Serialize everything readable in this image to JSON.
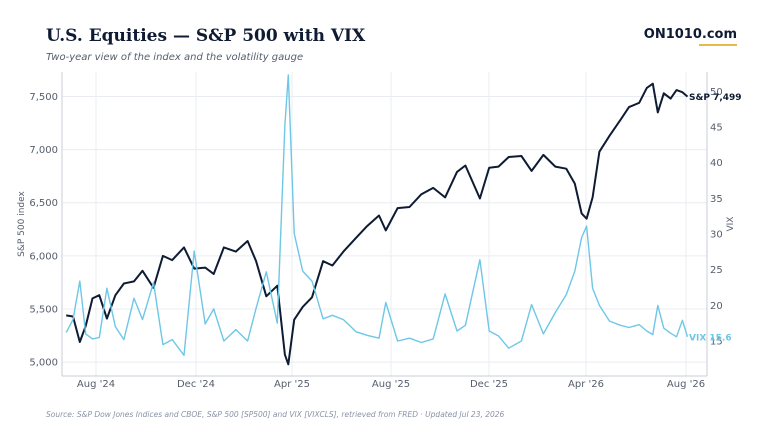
{
  "header": {
    "title": "U.S. Equities — S&P 500 with VIX",
    "subtitle": "Two-year view of the index and the volatility gauge",
    "brand": "ON1010.com"
  },
  "footer": {
    "source": "Source: S&P Dow Jones Indices and CBOE, S&P 500 [SP500] and VIX [VIXCLS], retrieved from FRED · Updated Jul 23, 2026"
  },
  "colors": {
    "spx": "#0f1b33",
    "vix": "#6ec7e6",
    "grid": "#e9ecf1",
    "axis": "#c9ced8"
  },
  "chart_data": {
    "type": "line",
    "title": "U.S. Equities — S&P 500 with VIX",
    "subtitle": "Two-year view of the index and the volatility gauge",
    "x_ticks": [
      "Aug '24",
      "Dec '24",
      "Apr '25",
      "Aug '25",
      "Dec '25",
      "Apr '26",
      "Aug '26"
    ],
    "x_range": [
      "2024-07-15",
      "2026-08-15"
    ],
    "y_left": {
      "label": "S&P 500 index",
      "ticks": [
        5000,
        5500,
        6000,
        6500,
        7000,
        7500
      ],
      "range": [
        4870,
        7730
      ]
    },
    "y_right": {
      "label": "VIX",
      "ticks": [
        15,
        20,
        25,
        30,
        35,
        40,
        45,
        50
      ],
      "range": [
        10.1,
        52.7
      ]
    },
    "series": [
      {
        "name": "S&P 500",
        "axis": "left",
        "end_label": "S&P 7,499",
        "points": [
          [
            "2024-07-20",
            5440
          ],
          [
            "2024-07-28",
            5430
          ],
          [
            "2024-08-05",
            5190
          ],
          [
            "2024-08-12",
            5340
          ],
          [
            "2024-08-20",
            5600
          ],
          [
            "2024-08-28",
            5630
          ],
          [
            "2024-09-06",
            5410
          ],
          [
            "2024-09-16",
            5630
          ],
          [
            "2024-09-26",
            5740
          ],
          [
            "2024-10-08",
            5760
          ],
          [
            "2024-10-18",
            5860
          ],
          [
            "2024-10-31",
            5700
          ],
          [
            "2024-11-11",
            6000
          ],
          [
            "2024-11-22",
            5960
          ],
          [
            "2024-12-06",
            6080
          ],
          [
            "2024-12-18",
            5880
          ],
          [
            "2024-12-31",
            5890
          ],
          [
            "2025-01-10",
            5830
          ],
          [
            "2025-01-22",
            6080
          ],
          [
            "2025-02-05",
            6040
          ],
          [
            "2025-02-19",
            6140
          ],
          [
            "2025-03-01",
            5950
          ],
          [
            "2025-03-13",
            5620
          ],
          [
            "2025-03-26",
            5720
          ],
          [
            "2025-04-04",
            5070
          ],
          [
            "2025-04-08",
            4980
          ],
          [
            "2025-04-15",
            5400
          ],
          [
            "2025-04-25",
            5520
          ],
          [
            "2025-05-06",
            5610
          ],
          [
            "2025-05-19",
            5950
          ],
          [
            "2025-05-30",
            5910
          ],
          [
            "2025-06-12",
            6040
          ],
          [
            "2025-06-27",
            6170
          ],
          [
            "2025-07-10",
            6280
          ],
          [
            "2025-07-24",
            6380
          ],
          [
            "2025-08-01",
            6240
          ],
          [
            "2025-08-15",
            6450
          ],
          [
            "2025-08-29",
            6460
          ],
          [
            "2025-09-12",
            6580
          ],
          [
            "2025-09-26",
            6640
          ],
          [
            "2025-10-10",
            6550
          ],
          [
            "2025-10-24",
            6790
          ],
          [
            "2025-11-03",
            6850
          ],
          [
            "2025-11-20",
            6540
          ],
          [
            "2025-12-01",
            6830
          ],
          [
            "2025-12-12",
            6840
          ],
          [
            "2025-12-24",
            6930
          ],
          [
            "2026-01-08",
            6940
          ],
          [
            "2026-01-20",
            6800
          ],
          [
            "2026-02-03",
            6950
          ],
          [
            "2026-02-17",
            6840
          ],
          [
            "2026-03-02",
            6820
          ],
          [
            "2026-03-12",
            6680
          ],
          [
            "2026-03-20",
            6400
          ],
          [
            "2026-03-26",
            6350
          ],
          [
            "2026-04-02",
            6550
          ],
          [
            "2026-04-10",
            6980
          ],
          [
            "2026-04-22",
            7130
          ],
          [
            "2026-05-05",
            7280
          ],
          [
            "2026-05-15",
            7400
          ],
          [
            "2026-05-27",
            7440
          ],
          [
            "2026-06-05",
            7580
          ],
          [
            "2026-06-12",
            7620
          ],
          [
            "2026-06-18",
            7350
          ],
          [
            "2026-06-25",
            7530
          ],
          [
            "2026-07-03",
            7480
          ],
          [
            "2026-07-10",
            7560
          ],
          [
            "2026-07-17",
            7540
          ],
          [
            "2026-07-23",
            7499
          ]
        ]
      },
      {
        "name": "VIX",
        "axis": "right",
        "end_label": "VIX 15.6",
        "points": [
          [
            "2024-07-20",
            16.2
          ],
          [
            "2024-07-28",
            18.0
          ],
          [
            "2024-08-05",
            23.4
          ],
          [
            "2024-08-12",
            16.0
          ],
          [
            "2024-08-20",
            15.3
          ],
          [
            "2024-08-28",
            15.5
          ],
          [
            "2024-09-06",
            22.4
          ],
          [
            "2024-09-16",
            17.0
          ],
          [
            "2024-09-26",
            15.2
          ],
          [
            "2024-10-08",
            21.0
          ],
          [
            "2024-10-18",
            18.0
          ],
          [
            "2024-10-31",
            23.2
          ],
          [
            "2024-11-11",
            14.5
          ],
          [
            "2024-11-22",
            15.2
          ],
          [
            "2024-12-06",
            13.0
          ],
          [
            "2024-12-18",
            27.6
          ],
          [
            "2024-12-31",
            17.4
          ],
          [
            "2025-01-10",
            19.5
          ],
          [
            "2025-01-22",
            15.0
          ],
          [
            "2025-02-05",
            16.6
          ],
          [
            "2025-02-19",
            15.0
          ],
          [
            "2025-03-01",
            19.6
          ],
          [
            "2025-03-13",
            24.7
          ],
          [
            "2025-03-26",
            17.5
          ],
          [
            "2025-04-04",
            45.3
          ],
          [
            "2025-04-08",
            52.3
          ],
          [
            "2025-04-15",
            30.1
          ],
          [
            "2025-04-25",
            24.8
          ],
          [
            "2025-05-06",
            23.4
          ],
          [
            "2025-05-19",
            18.1
          ],
          [
            "2025-05-30",
            18.6
          ],
          [
            "2025-06-12",
            18.0
          ],
          [
            "2025-06-27",
            16.3
          ],
          [
            "2025-07-10",
            15.8
          ],
          [
            "2025-07-24",
            15.4
          ],
          [
            "2025-08-01",
            20.4
          ],
          [
            "2025-08-15",
            15.0
          ],
          [
            "2025-08-29",
            15.4
          ],
          [
            "2025-09-12",
            14.8
          ],
          [
            "2025-09-26",
            15.3
          ],
          [
            "2025-10-10",
            21.6
          ],
          [
            "2025-10-24",
            16.4
          ],
          [
            "2025-11-03",
            17.2
          ],
          [
            "2025-11-20",
            26.4
          ],
          [
            "2025-12-01",
            16.4
          ],
          [
            "2025-12-12",
            15.7
          ],
          [
            "2025-12-24",
            14.0
          ],
          [
            "2026-01-08",
            15.0
          ],
          [
            "2026-01-20",
            20.1
          ],
          [
            "2026-02-03",
            16.0
          ],
          [
            "2026-02-17",
            19.0
          ],
          [
            "2026-03-02",
            21.5
          ],
          [
            "2026-03-12",
            24.8
          ],
          [
            "2026-03-20",
            29.5
          ],
          [
            "2026-03-26",
            31.1
          ],
          [
            "2026-04-02",
            22.4
          ],
          [
            "2026-04-10",
            20.0
          ],
          [
            "2026-04-22",
            17.8
          ],
          [
            "2026-05-05",
            17.2
          ],
          [
            "2026-05-15",
            16.9
          ],
          [
            "2026-05-27",
            17.3
          ],
          [
            "2026-06-05",
            16.4
          ],
          [
            "2026-06-12",
            15.9
          ],
          [
            "2026-06-18",
            20.0
          ],
          [
            "2026-06-25",
            16.8
          ],
          [
            "2026-07-03",
            16.1
          ],
          [
            "2026-07-10",
            15.6
          ],
          [
            "2026-07-17",
            17.9
          ],
          [
            "2026-07-23",
            15.6
          ]
        ]
      }
    ],
    "grid": true,
    "legend": "none"
  }
}
